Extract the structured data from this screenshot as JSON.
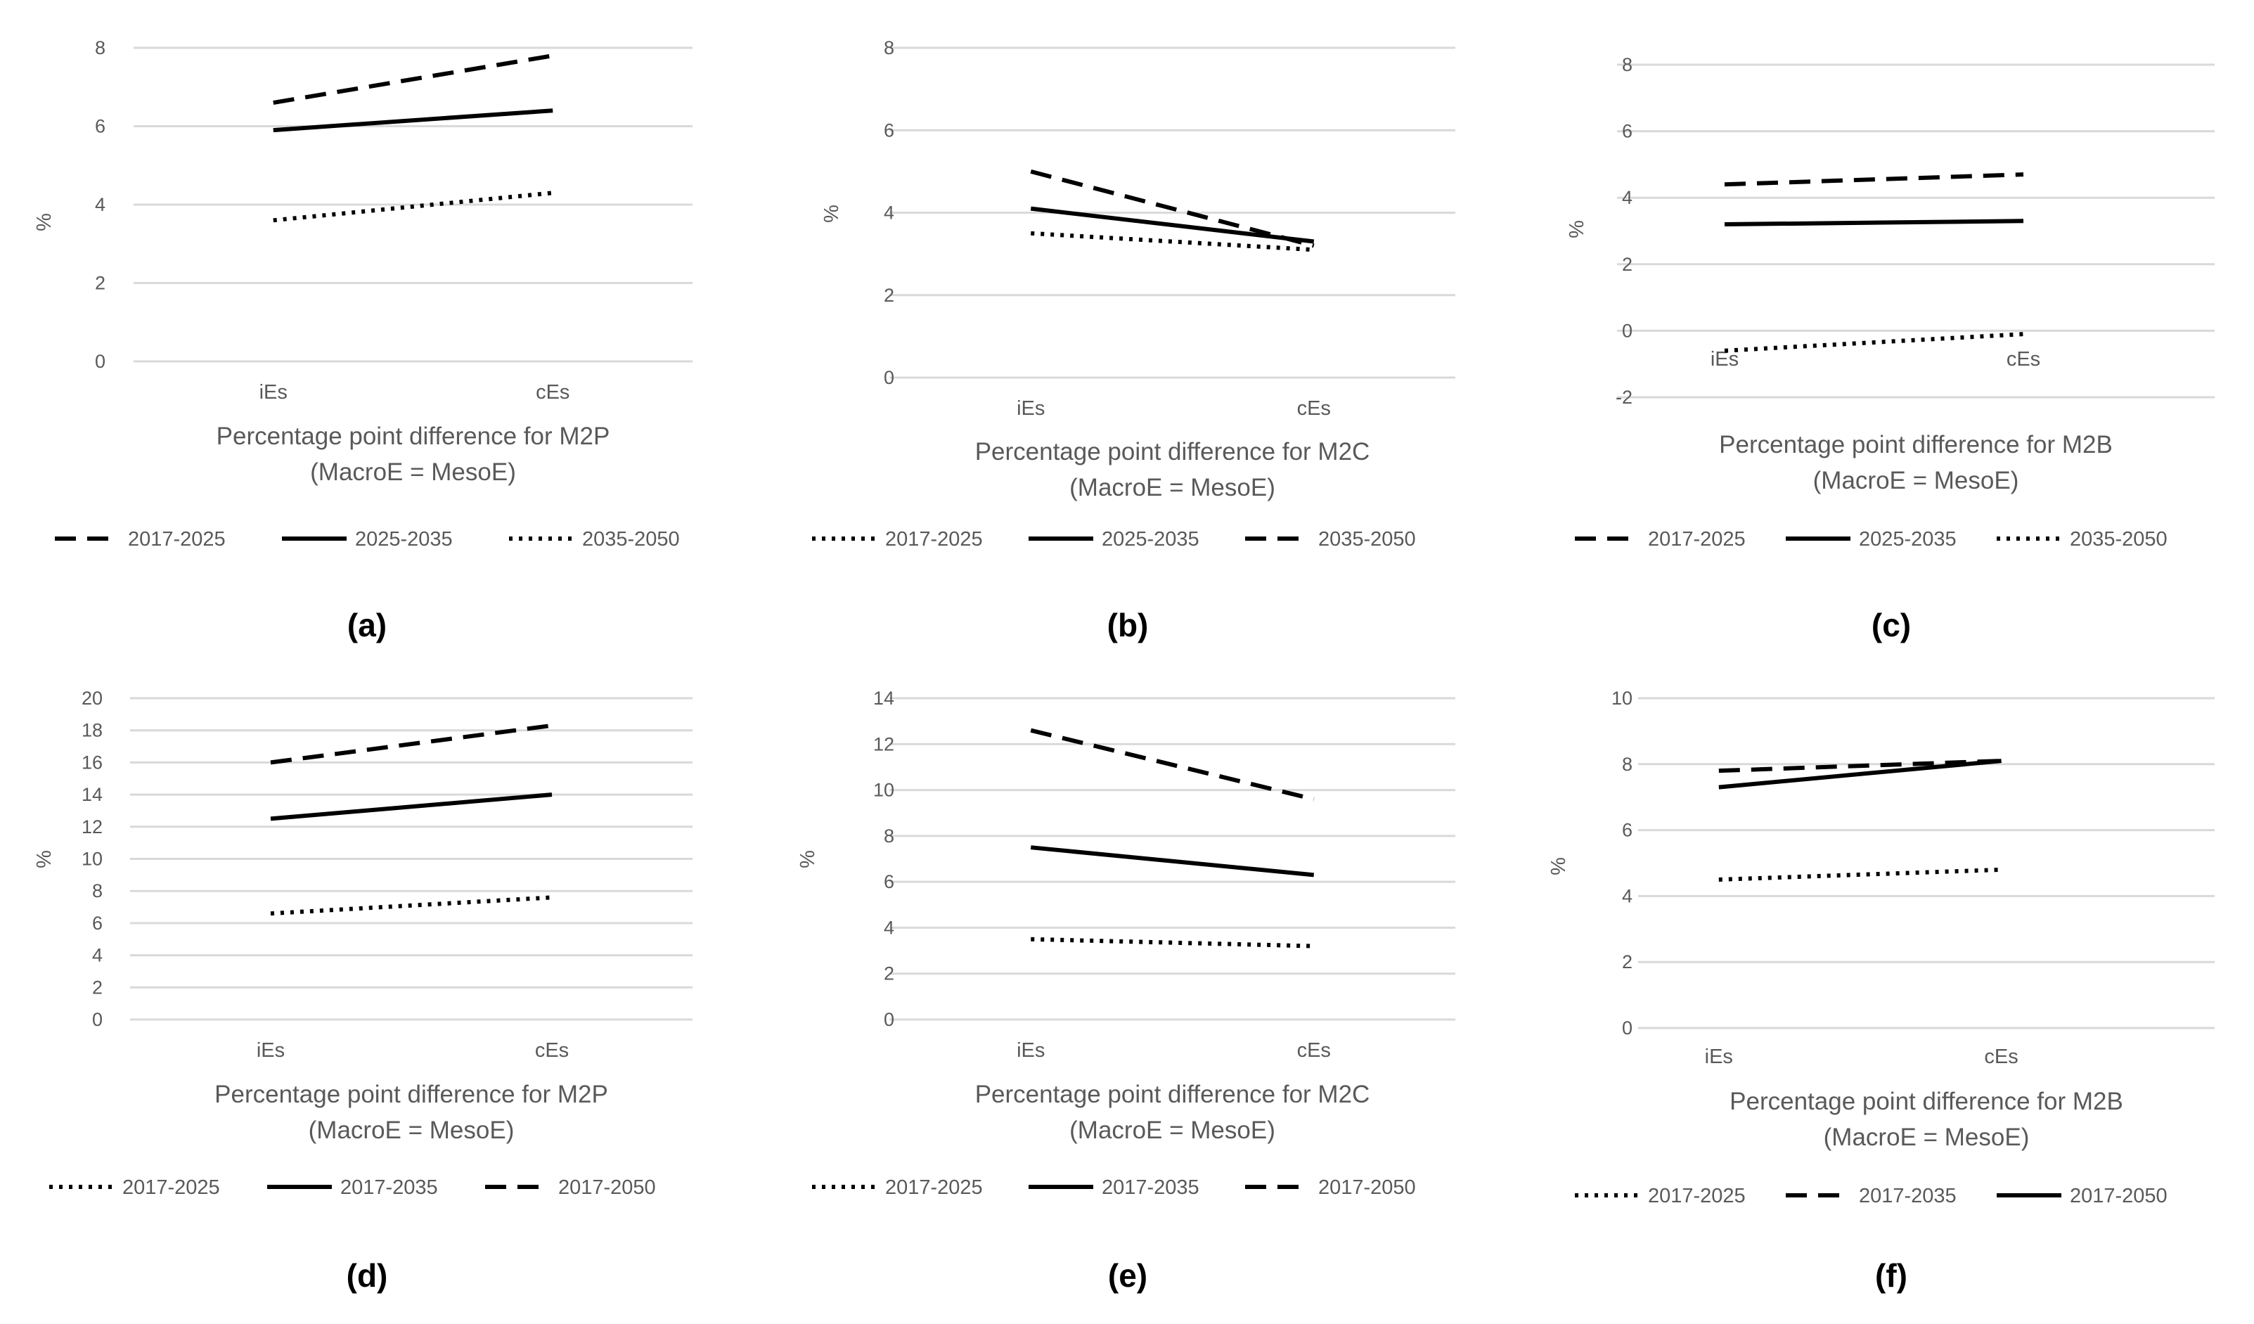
{
  "figure": {
    "panel_labels": [
      "(a)",
      "(b)",
      "(c)",
      "(d)",
      "(e)",
      "(f)"
    ]
  },
  "colors": {
    "grid": "#d9d9d9",
    "axis_text": "#595959",
    "series": "#000000"
  },
  "chart_data": [
    {
      "type": "line",
      "panel": "(a)",
      "title": "Percentage point difference for M2P",
      "subtitle": "(MacroE = MesoE)",
      "ylabel": "%",
      "categories": [
        "iEs",
        "cEs"
      ],
      "ylim": [
        0,
        8
      ],
      "yticks": [
        0,
        2,
        4,
        6,
        8
      ],
      "series": [
        {
          "name": "2017-2025",
          "style": "dashed",
          "values": [
            6.6,
            7.8
          ]
        },
        {
          "name": "2025-2035",
          "style": "solid",
          "values": [
            5.9,
            6.4
          ]
        },
        {
          "name": "2035-2050",
          "style": "dotted",
          "values": [
            3.6,
            4.3
          ]
        }
      ]
    },
    {
      "type": "line",
      "panel": "(b)",
      "title": "Percentage point difference for M2C",
      "subtitle": "(MacroE = MesoE)",
      "ylabel": "%",
      "categories": [
        "iEs",
        "cEs"
      ],
      "ylim": [
        0,
        8
      ],
      "yticks": [
        0,
        2,
        4,
        6,
        8
      ],
      "series": [
        {
          "name": "2017-2025",
          "style": "dotted",
          "values": [
            3.5,
            3.1
          ]
        },
        {
          "name": "2025-2035",
          "style": "solid",
          "values": [
            4.1,
            3.3
          ]
        },
        {
          "name": "2035-2050",
          "style": "dashed",
          "values": [
            5.0,
            3.2
          ]
        }
      ]
    },
    {
      "type": "line",
      "panel": "(c)",
      "title": "Percentage point difference for M2B",
      "subtitle": "(MacroE = MesoE)",
      "ylabel": "%",
      "categories": [
        "iEs",
        "cEs"
      ],
      "ylim": [
        -2,
        8
      ],
      "yticks": [
        -2,
        0,
        2,
        4,
        6,
        8
      ],
      "series": [
        {
          "name": "2017-2025",
          "style": "dashed",
          "values": [
            4.4,
            4.7
          ]
        },
        {
          "name": "2025-2035",
          "style": "solid",
          "values": [
            3.2,
            3.3
          ]
        },
        {
          "name": "2035-2050",
          "style": "dotted",
          "values": [
            -0.6,
            -0.1
          ]
        }
      ]
    },
    {
      "type": "line",
      "panel": "(d)",
      "title": "Percentage point difference for M2P",
      "subtitle": "(MacroE = MesoE)",
      "ylabel": "%",
      "categories": [
        "iEs",
        "cEs"
      ],
      "ylim": [
        0,
        20
      ],
      "yticks": [
        0,
        2,
        4,
        6,
        8,
        10,
        12,
        14,
        16,
        18,
        20
      ],
      "series": [
        {
          "name": "2017-2025",
          "style": "dotted",
          "values": [
            6.6,
            7.6
          ]
        },
        {
          "name": "2017-2035",
          "style": "solid",
          "values": [
            12.5,
            14.0
          ]
        },
        {
          "name": "2017-2050",
          "style": "dashed",
          "values": [
            16.0,
            18.3
          ]
        }
      ]
    },
    {
      "type": "line",
      "panel": "(e)",
      "title": "Percentage point difference for M2C",
      "subtitle": "(MacroE = MesoE)",
      "ylabel": "%",
      "categories": [
        "iEs",
        "cEs"
      ],
      "ylim": [
        0,
        14
      ],
      "yticks": [
        0,
        2,
        4,
        6,
        8,
        10,
        12,
        14
      ],
      "series": [
        {
          "name": "2017-2025",
          "style": "dotted",
          "values": [
            3.5,
            3.2
          ]
        },
        {
          "name": "2017-2035",
          "style": "solid",
          "values": [
            7.5,
            6.3
          ]
        },
        {
          "name": "2017-2050",
          "style": "dashed",
          "values": [
            12.6,
            9.6
          ]
        }
      ]
    },
    {
      "type": "line",
      "panel": "(f)",
      "title": "Percentage point difference for M2B",
      "subtitle": "(MacroE = MesoE)",
      "ylabel": "%",
      "categories": [
        "iEs",
        "cEs"
      ],
      "ylim": [
        0,
        10
      ],
      "yticks": [
        0,
        2,
        4,
        6,
        8,
        10
      ],
      "series": [
        {
          "name": "2017-2025",
          "style": "dotted",
          "values": [
            4.5,
            4.8
          ]
        },
        {
          "name": "2017-2035",
          "style": "dashed",
          "values": [
            7.8,
            8.1
          ]
        },
        {
          "name": "2017-2050",
          "style": "solid",
          "values": [
            7.3,
            8.1
          ]
        }
      ]
    }
  ]
}
